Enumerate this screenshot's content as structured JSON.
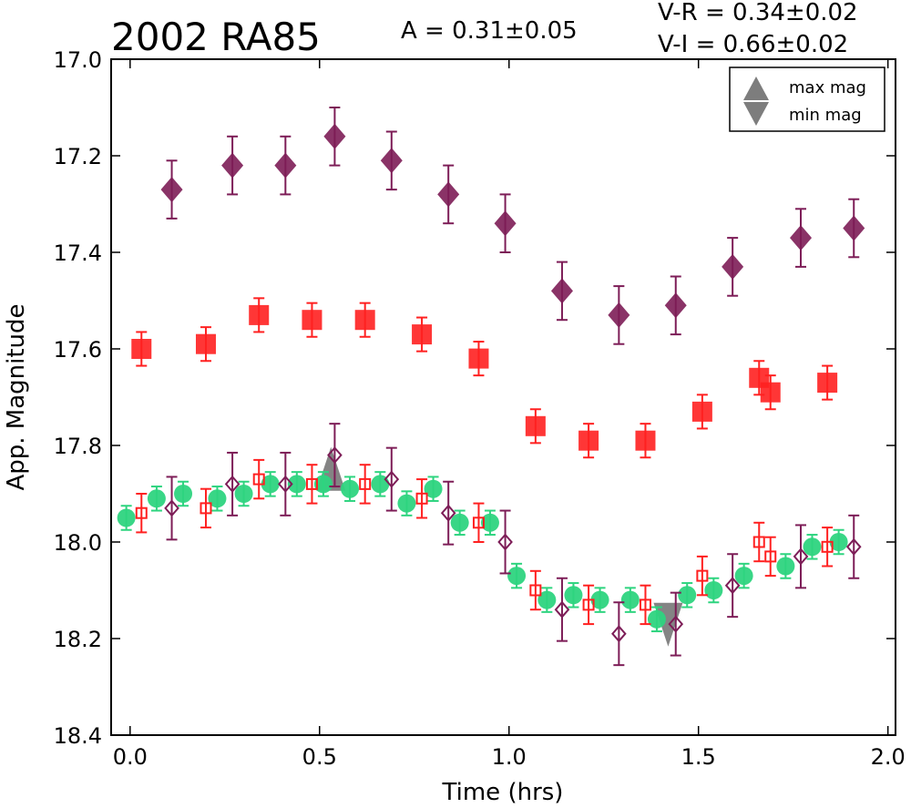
{
  "chart_data": {
    "type": "scatter",
    "title": "2002 RA85",
    "annotations": [
      "A  = 0.31±0.05",
      "V-R = 0.34±0.02",
      "V-I  = 0.66±0.02"
    ],
    "xlabel": "Time (hrs)",
    "ylabel": "App. Magnitude",
    "xlim": [
      -0.05,
      2.02
    ],
    "ylim": [
      18.4,
      17.0
    ],
    "y_inverted": true,
    "x_ticks": [
      "0.0",
      "0.5",
      "1.0",
      "1.5",
      "2.0"
    ],
    "y_ticks": [
      "17.0",
      "17.2",
      "17.4",
      "17.6",
      "17.8",
      "18.0",
      "18.2",
      "18.4"
    ],
    "legend": {
      "placement": "top-right",
      "entries": [
        "max mag",
        "min mag"
      ]
    },
    "colors": {
      "purple": "#7d1d57",
      "red": "#ff2020",
      "green": "#2ed47f",
      "gray": "#6f6f6f"
    },
    "series": [
      {
        "marker": "diamond-filled",
        "color": "#7d1d57",
        "x": [
          0.11,
          0.27,
          0.41,
          0.54,
          0.69,
          0.84,
          0.99,
          1.14,
          1.29,
          1.44,
          1.59,
          1.77,
          1.91
        ],
        "y": [
          17.27,
          17.22,
          17.22,
          17.16,
          17.21,
          17.28,
          17.34,
          17.48,
          17.53,
          17.51,
          17.43,
          17.37,
          17.35
        ],
        "err": [
          0.06,
          0.06,
          0.06,
          0.06,
          0.06,
          0.06,
          0.06,
          0.06,
          0.06,
          0.06,
          0.06,
          0.06,
          0.06
        ]
      },
      {
        "marker": "square-filled",
        "color": "#ff2020",
        "x": [
          0.03,
          0.2,
          0.34,
          0.48,
          0.62,
          0.77,
          0.92,
          1.07,
          1.21,
          1.36,
          1.51,
          1.66,
          1.69,
          1.84
        ],
        "y": [
          17.6,
          17.59,
          17.53,
          17.54,
          17.54,
          17.57,
          17.62,
          17.76,
          17.79,
          17.79,
          17.73,
          17.66,
          17.69,
          17.67
        ],
        "err": [
          0.035,
          0.035,
          0.035,
          0.035,
          0.035,
          0.035,
          0.035,
          0.035,
          0.035,
          0.035,
          0.035,
          0.035,
          0.035,
          0.035
        ]
      },
      {
        "marker": "circle-filled",
        "color": "#2ed47f",
        "x": [
          -0.01,
          0.07,
          0.14,
          0.23,
          0.3,
          0.37,
          0.44,
          0.51,
          0.58,
          0.66,
          0.73,
          0.8,
          0.87,
          0.95,
          1.02,
          1.1,
          1.17,
          1.24,
          1.32,
          1.39,
          1.47,
          1.54,
          1.62,
          1.73,
          1.8,
          1.87
        ],
        "y": [
          17.95,
          17.91,
          17.9,
          17.91,
          17.9,
          17.88,
          17.88,
          17.88,
          17.89,
          17.88,
          17.92,
          17.89,
          17.96,
          17.96,
          18.07,
          18.12,
          18.11,
          18.12,
          18.12,
          18.16,
          18.11,
          18.1,
          18.07,
          18.05,
          18.01,
          18.0
        ],
        "err": [
          0.025,
          0.025,
          0.025,
          0.025,
          0.025,
          0.025,
          0.025,
          0.025,
          0.025,
          0.025,
          0.025,
          0.025,
          0.025,
          0.025,
          0.025,
          0.025,
          0.025,
          0.025,
          0.025,
          0.025,
          0.025,
          0.025,
          0.025,
          0.025,
          0.025,
          0.025
        ]
      },
      {
        "marker": "square-open",
        "color": "#ff2020",
        "x": [
          0.03,
          0.2,
          0.34,
          0.48,
          0.62,
          0.77,
          0.92,
          1.07,
          1.21,
          1.36,
          1.51,
          1.66,
          1.69,
          1.84
        ],
        "y": [
          17.94,
          17.93,
          17.87,
          17.88,
          17.88,
          17.91,
          17.96,
          18.1,
          18.13,
          18.13,
          18.07,
          18.0,
          18.03,
          18.01
        ],
        "err": [
          0.04,
          0.04,
          0.04,
          0.04,
          0.04,
          0.04,
          0.04,
          0.04,
          0.04,
          0.04,
          0.04,
          0.04,
          0.04,
          0.04
        ]
      },
      {
        "marker": "diamond-open",
        "color": "#7d1d57",
        "x": [
          0.11,
          0.27,
          0.41,
          0.54,
          0.69,
          0.84,
          0.99,
          1.14,
          1.29,
          1.44,
          1.59,
          1.77,
          1.91
        ],
        "y": [
          17.93,
          17.88,
          17.88,
          17.82,
          17.87,
          17.94,
          18.0,
          18.14,
          18.19,
          18.17,
          18.09,
          18.03,
          18.01
        ],
        "err": [
          0.065,
          0.065,
          0.065,
          0.065,
          0.065,
          0.065,
          0.065,
          0.065,
          0.065,
          0.065,
          0.065,
          0.065,
          0.065
        ]
      }
    ],
    "extrema": [
      {
        "label": "max mag",
        "x": 0.53,
        "y": 17.86
      },
      {
        "label": "min mag",
        "x": 1.42,
        "y": 18.16
      }
    ]
  }
}
